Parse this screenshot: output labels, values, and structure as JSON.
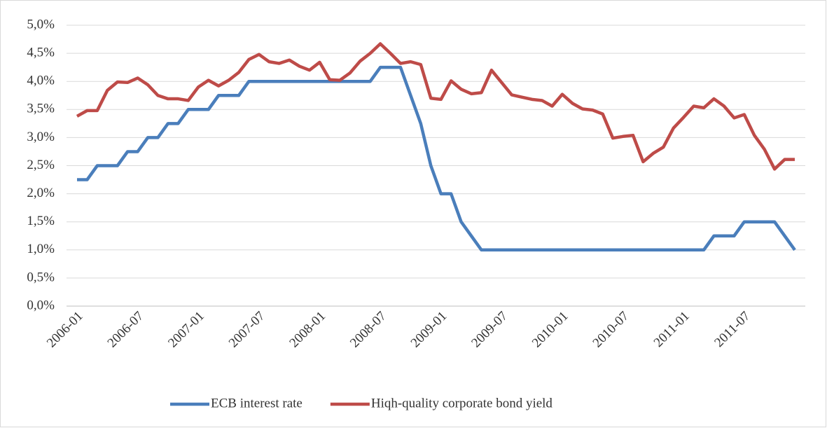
{
  "chart_data": {
    "type": "line",
    "categories": [
      "2006-01",
      null,
      null,
      null,
      null,
      null,
      "2006-07",
      null,
      null,
      null,
      null,
      null,
      "2007-01",
      null,
      null,
      null,
      null,
      null,
      "2007-07",
      null,
      null,
      null,
      null,
      null,
      "2008-01",
      null,
      null,
      null,
      null,
      null,
      "2008-07",
      null,
      null,
      null,
      null,
      null,
      "2009-01",
      null,
      null,
      null,
      null,
      null,
      "2009-07",
      null,
      null,
      null,
      null,
      null,
      "2010-01",
      null,
      null,
      null,
      null,
      null,
      "2010-07",
      null,
      null,
      null,
      null,
      null,
      "2011-01",
      null,
      null,
      null,
      null,
      null,
      "2011-07",
      null,
      null,
      null,
      null,
      null
    ],
    "series": [
      {
        "name": "ECB interest rate",
        "color": "#4a7ebb",
        "values": [
          2.25,
          2.25,
          2.5,
          2.5,
          2.5,
          2.75,
          2.75,
          3.0,
          3.0,
          3.25,
          3.25,
          3.5,
          3.5,
          3.5,
          3.75,
          3.75,
          3.75,
          4.0,
          4.0,
          4.0,
          4.0,
          4.0,
          4.0,
          4.0,
          4.0,
          4.0,
          4.0,
          4.0,
          4.0,
          4.0,
          4.25,
          4.25,
          4.25,
          3.75,
          3.25,
          2.5,
          2.0,
          2.0,
          1.5,
          1.25,
          1.0,
          1.0,
          1.0,
          1.0,
          1.0,
          1.0,
          1.0,
          1.0,
          1.0,
          1.0,
          1.0,
          1.0,
          1.0,
          1.0,
          1.0,
          1.0,
          1.0,
          1.0,
          1.0,
          1.0,
          1.0,
          1.0,
          1.0,
          1.25,
          1.25,
          1.25,
          1.5,
          1.5,
          1.5,
          1.5,
          1.25,
          1.0
        ]
      },
      {
        "name": "Hiqh-quality corporate bond yield",
        "color": "#be4b48",
        "values": [
          3.38,
          3.48,
          3.48,
          3.84,
          3.99,
          3.98,
          4.06,
          3.94,
          3.75,
          3.69,
          3.69,
          3.66,
          3.9,
          4.02,
          3.92,
          4.02,
          4.16,
          4.39,
          4.48,
          4.35,
          4.32,
          4.38,
          4.27,
          4.2,
          4.34,
          4.03,
          4.02,
          4.15,
          4.36,
          4.5,
          4.67,
          4.5,
          4.32,
          4.35,
          4.3,
          3.7,
          3.68,
          4.01,
          3.86,
          3.78,
          3.8,
          4.2,
          3.98,
          3.76,
          3.72,
          3.68,
          3.66,
          3.56,
          3.77,
          3.61,
          3.51,
          3.49,
          3.42,
          2.99,
          3.02,
          3.04,
          2.57,
          2.72,
          2.83,
          3.17,
          3.36,
          3.56,
          3.53,
          3.69,
          3.56,
          3.35,
          3.41,
          3.04,
          2.79,
          2.44,
          2.61,
          2.61
        ]
      }
    ],
    "ylim": [
      0,
      5
    ],
    "yticks": [
      {
        "value": 0,
        "label": "0,0%"
      },
      {
        "value": 0.5,
        "label": "0,5%"
      },
      {
        "value": 1,
        "label": "1,0%"
      },
      {
        "value": 1.5,
        "label": "1,5%"
      },
      {
        "value": 2,
        "label": "2,0%"
      },
      {
        "value": 2.5,
        "label": "2,5%"
      },
      {
        "value": 3,
        "label": "3,0%"
      },
      {
        "value": 3.5,
        "label": "3,5%"
      },
      {
        "value": 4,
        "label": "4,0%"
      },
      {
        "value": 4.5,
        "label": "4,5%"
      },
      {
        "value": 5,
        "label": "5,0%"
      }
    ],
    "grid": true,
    "legend": "bottom"
  }
}
